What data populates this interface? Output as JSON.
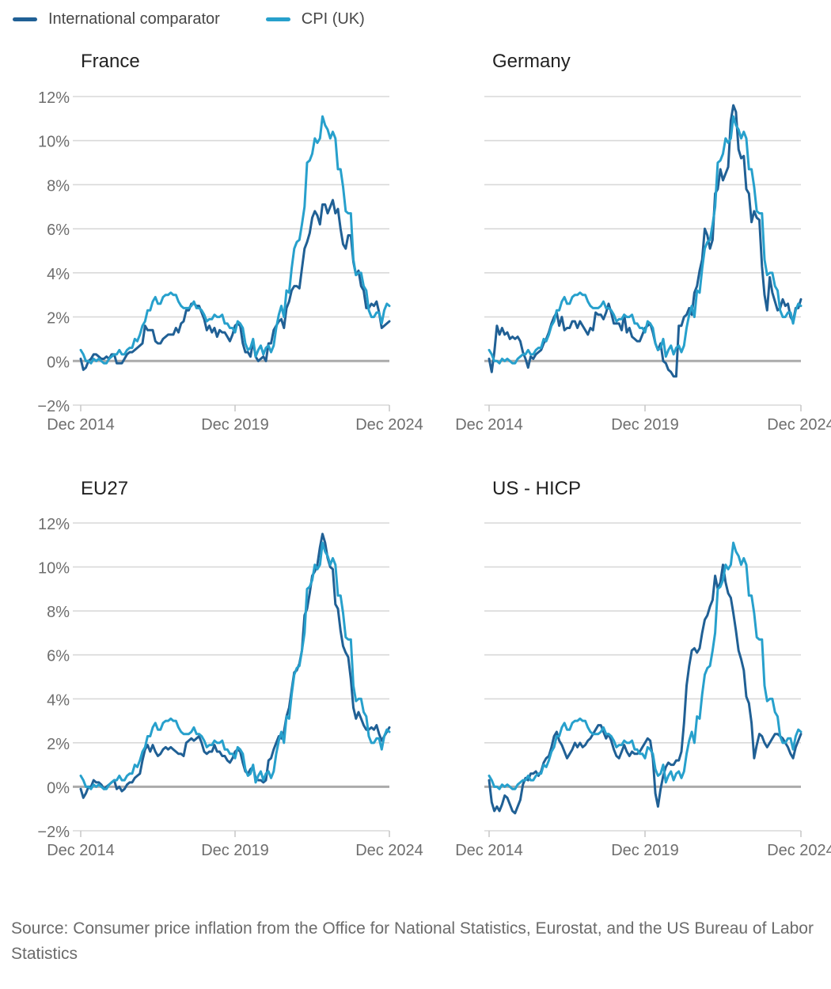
{
  "legend": {
    "items": [
      {
        "label": "International comparator",
        "color": "#206095"
      },
      {
        "label": "CPI (UK)",
        "color": "#27A0CC"
      }
    ]
  },
  "source": {
    "text": "Source: Consumer price inflation from the Office for National Statistics, Eurostat, and the US Bureau of Labor Statistics"
  },
  "chart_data": {
    "type": "line",
    "x_unit": "monthly",
    "x_start": "Dec 2014",
    "x_end": "Dec 2024",
    "x_tick_labels": [
      "Dec 2014",
      "Dec 2019",
      "Dec 2024"
    ],
    "x_tick_month_index": [
      0,
      60,
      120
    ],
    "y_tick_labels": [
      "12%",
      "10%",
      "8%",
      "6%",
      "4%",
      "2%",
      "0%",
      "−2%"
    ],
    "y_tick_values": [
      12,
      10,
      8,
      6,
      4,
      2,
      0,
      -2
    ],
    "ylim": [
      -2,
      12
    ],
    "grid": "horizontal-only",
    "legend_position": "top-left",
    "colors": {
      "international_comparator": "#206095",
      "cpi_uk": "#27A0CC",
      "gridline": "#d9d9d9",
      "zero_line": "#ababab",
      "tick_text": "#6e6e6e"
    },
    "uk_series": {
      "name": "CPI (UK)",
      "values": [
        0.5,
        0.3,
        0.0,
        0.0,
        -0.1,
        0.1,
        0.0,
        0.1,
        0.0,
        -0.1,
        -0.1,
        0.1,
        0.2,
        0.3,
        0.3,
        0.5,
        0.3,
        0.3,
        0.5,
        0.6,
        0.6,
        1.0,
        0.9,
        1.2,
        1.6,
        1.8,
        2.3,
        2.3,
        2.7,
        2.9,
        2.6,
        2.6,
        2.9,
        3.0,
        3.0,
        3.1,
        3.0,
        3.0,
        2.7,
        2.5,
        2.4,
        2.4,
        2.4,
        2.5,
        2.7,
        2.4,
        2.4,
        2.3,
        2.1,
        1.8,
        1.9,
        1.9,
        2.1,
        2.0,
        2.0,
        2.1,
        1.7,
        1.7,
        1.5,
        1.5,
        1.3,
        1.8,
        1.7,
        1.5,
        0.8,
        0.5,
        0.6,
        1.0,
        0.2,
        0.5,
        0.7,
        0.3,
        0.6,
        0.7,
        0.4,
        0.7,
        1.5,
        2.1,
        2.5,
        2.0,
        3.2,
        3.1,
        4.2,
        5.1,
        5.4,
        5.5,
        6.2,
        7.0,
        9.0,
        9.1,
        9.4,
        10.1,
        9.9,
        10.1,
        11.1,
        10.7,
        10.5,
        10.1,
        10.4,
        10.1,
        8.7,
        8.7,
        7.9,
        6.8,
        6.7,
        6.7,
        4.6,
        3.9,
        4.0,
        4.0,
        3.4,
        3.2,
        2.3,
        2.0,
        2.0,
        2.2,
        2.2,
        1.7,
        2.3,
        2.6,
        2.5
      ]
    },
    "panels": [
      {
        "title": "France",
        "comparator": {
          "name": "International comparator",
          "values": [
            0.1,
            -0.4,
            -0.3,
            0.0,
            0.1,
            0.3,
            0.3,
            0.2,
            0.1,
            0.1,
            0.2,
            0.1,
            0.3,
            0.3,
            -0.1,
            -0.1,
            -0.1,
            0.1,
            0.3,
            0.4,
            0.4,
            0.5,
            0.6,
            0.7,
            0.8,
            1.6,
            1.4,
            1.4,
            1.4,
            0.9,
            0.8,
            0.8,
            1.0,
            1.1,
            1.2,
            1.2,
            1.2,
            1.5,
            1.3,
            1.7,
            1.8,
            2.3,
            2.3,
            2.6,
            2.6,
            2.5,
            2.5,
            2.2,
            1.9,
            1.4,
            1.6,
            1.3,
            1.5,
            1.1,
            1.4,
            1.3,
            1.3,
            1.1,
            0.9,
            1.2,
            1.6,
            1.7,
            1.6,
            0.8,
            0.4,
            0.4,
            0.2,
            0.9,
            0.2,
            0.0,
            0.1,
            0.2,
            0.0,
            0.8,
            0.8,
            1.4,
            1.6,
            1.8,
            1.9,
            1.5,
            2.4,
            2.7,
            3.2,
            3.4,
            3.4,
            3.3,
            4.2,
            5.1,
            5.4,
            5.8,
            6.5,
            6.8,
            6.6,
            6.2,
            7.1,
            7.1,
            6.7,
            7.0,
            7.3,
            6.7,
            6.9,
            6.0,
            5.3,
            5.1,
            5.7,
            5.7,
            4.5,
            3.9,
            4.1,
            3.4,
            3.2,
            2.4,
            2.4,
            2.6,
            2.5,
            2.7,
            2.2,
            1.5,
            1.6,
            1.7,
            1.8
          ]
        }
      },
      {
        "title": "Germany",
        "comparator": {
          "name": "International comparator",
          "values": [
            0.1,
            -0.5,
            0.4,
            1.6,
            1.2,
            1.5,
            1.2,
            1.3,
            1.0,
            1.1,
            1.0,
            1.1,
            0.9,
            0.4,
            0.1,
            -0.3,
            0.2,
            0.1,
            0.3,
            0.4,
            0.5,
            0.8,
            1.0,
            1.3,
            1.7,
            2.0,
            2.2,
            1.6,
            2.0,
            1.4,
            1.5,
            1.5,
            1.8,
            1.8,
            1.5,
            1.8,
            1.6,
            1.4,
            1.2,
            1.5,
            1.4,
            2.2,
            2.1,
            2.1,
            1.9,
            2.2,
            2.6,
            2.2,
            1.7,
            1.7,
            1.7,
            1.4,
            2.1,
            1.3,
            1.5,
            1.1,
            1.0,
            0.9,
            0.9,
            1.2,
            1.5,
            1.6,
            1.7,
            1.3,
            0.8,
            0.5,
            0.8,
            0.0,
            -0.1,
            -0.4,
            -0.5,
            -0.7,
            -0.7,
            1.6,
            1.6,
            2.0,
            2.1,
            2.4,
            2.1,
            3.1,
            3.4,
            4.1,
            4.6,
            6.0,
            5.7,
            5.1,
            5.5,
            7.6,
            7.8,
            8.7,
            8.2,
            8.5,
            8.8,
            10.9,
            11.6,
            11.3,
            9.6,
            9.2,
            9.3,
            7.8,
            7.6,
            6.3,
            6.8,
            6.5,
            6.4,
            4.3,
            3.0,
            2.3,
            3.8,
            3.1,
            2.7,
            2.3,
            2.4,
            2.8,
            2.5,
            2.6,
            2.0,
            1.8,
            2.4,
            2.4,
            2.8
          ]
        }
      },
      {
        "title": "EU27",
        "comparator": {
          "name": "International comparator",
          "values": [
            -0.1,
            -0.5,
            -0.3,
            0.0,
            0.0,
            0.3,
            0.2,
            0.2,
            0.1,
            -0.1,
            0.0,
            0.1,
            0.2,
            0.3,
            -0.1,
            0.0,
            -0.2,
            -0.1,
            0.1,
            0.2,
            0.2,
            0.4,
            0.5,
            0.6,
            1.2,
            1.7,
            1.9,
            1.6,
            1.9,
            1.6,
            1.4,
            1.5,
            1.7,
            1.8,
            1.7,
            1.8,
            1.7,
            1.6,
            1.5,
            1.5,
            1.4,
            2.0,
            2.1,
            2.2,
            2.1,
            2.2,
            2.3,
            2.0,
            1.6,
            1.5,
            1.6,
            1.6,
            1.9,
            1.6,
            1.6,
            1.4,
            1.4,
            1.2,
            1.1,
            1.3,
            1.6,
            1.7,
            1.6,
            1.1,
            0.7,
            0.6,
            0.8,
            0.9,
            0.4,
            0.3,
            0.3,
            0.2,
            0.3,
            1.2,
            1.3,
            1.7,
            2.0,
            2.3,
            2.2,
            2.5,
            3.2,
            3.6,
            4.4,
            5.2,
            5.3,
            5.6,
            6.2,
            7.8,
            8.1,
            8.8,
            9.6,
            9.8,
            10.1,
            10.9,
            11.5,
            11.1,
            10.4,
            10.0,
            9.9,
            8.3,
            8.1,
            7.1,
            6.4,
            6.1,
            5.9,
            4.9,
            3.6,
            3.1,
            3.4,
            3.1,
            2.8,
            2.6,
            2.6,
            2.7,
            2.6,
            2.8,
            2.4,
            2.1,
            2.3,
            2.5,
            2.7
          ]
        }
      },
      {
        "title": "US - HICP",
        "comparator": {
          "name": "International comparator",
          "values": [
            0.3,
            -0.7,
            -1.1,
            -0.9,
            -1.1,
            -0.8,
            -0.4,
            -0.5,
            -0.8,
            -1.1,
            -1.2,
            -0.9,
            -0.6,
            0.1,
            0.4,
            0.3,
            0.6,
            0.6,
            0.7,
            0.5,
            0.7,
            1.1,
            1.3,
            1.4,
            1.8,
            2.3,
            2.5,
            2.1,
            1.9,
            1.6,
            1.3,
            1.5,
            1.7,
            2.0,
            1.8,
            2.0,
            1.8,
            1.9,
            2.1,
            2.2,
            2.4,
            2.6,
            2.8,
            2.8,
            2.5,
            2.2,
            2.4,
            2.1,
            1.7,
            1.4,
            1.3,
            1.6,
            1.9,
            1.6,
            1.4,
            1.6,
            1.5,
            1.5,
            1.6,
            1.8,
            2.0,
            2.2,
            2.1,
            1.3,
            -0.3,
            -0.9,
            -0.1,
            0.5,
            0.9,
            1.1,
            1.0,
            1.0,
            1.2,
            1.2,
            1.6,
            2.9,
            4.6,
            5.5,
            6.2,
            6.3,
            6.1,
            6.3,
            7.0,
            7.6,
            7.8,
            8.2,
            8.5,
            9.6,
            9.0,
            9.3,
            10.1,
            9.3,
            8.8,
            8.6,
            7.9,
            7.1,
            6.2,
            5.8,
            5.3,
            4.1,
            3.8,
            2.9,
            1.3,
            1.9,
            2.4,
            2.3,
            2.0,
            1.8,
            2.0,
            2.2,
            2.4,
            2.4,
            2.3,
            2.2,
            2.0,
            1.8,
            1.5,
            1.3,
            1.8,
            2.1,
            2.4
          ]
        }
      }
    ]
  }
}
